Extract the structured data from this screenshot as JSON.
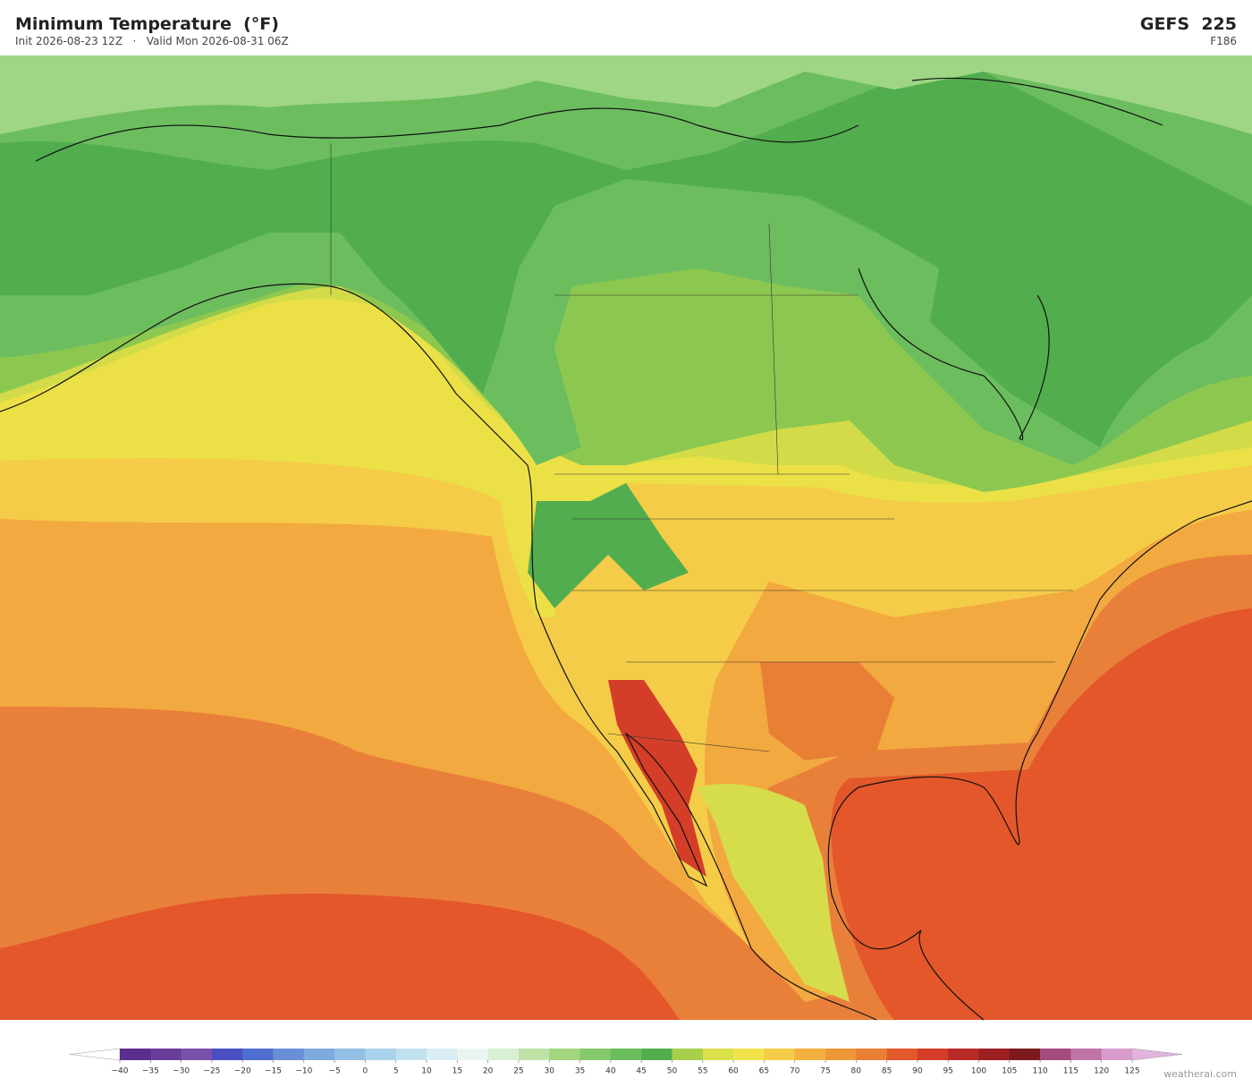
{
  "header": {
    "title": "Minimum Temperature  (°F)",
    "subtitle": "Init 2026-08-23 12Z   ·   Valid Mon 2026-08-31 06Z",
    "model": "GEFS  225",
    "forecast_hour": "F186"
  },
  "colorbar": {
    "ticks": [
      {
        "value": -40,
        "label": "−40"
      },
      {
        "value": -35,
        "label": "−35"
      },
      {
        "value": -30,
        "label": "−30"
      },
      {
        "value": -25,
        "label": "−25"
      },
      {
        "value": -20,
        "label": "−20"
      },
      {
        "value": -15,
        "label": "−15"
      },
      {
        "value": -10,
        "label": "−10"
      },
      {
        "value": -5,
        "label": "−5"
      },
      0,
      5,
      10,
      15,
      20,
      25,
      30,
      35,
      40,
      45,
      50,
      55,
      60,
      65,
      70,
      75,
      80,
      85,
      90,
      95,
      100,
      105,
      110,
      115,
      120,
      125
    ],
    "colors": [
      "#5b2d8e",
      "#6a3d9a",
      "#7b52ab",
      "#4b4fc4",
      "#4f6fd0",
      "#6a8fd6",
      "#7faade",
      "#93bfe4",
      "#a9d3ec",
      "#c2e1f0",
      "#d9eef4",
      "#e9f5ee",
      "#d9efd4",
      "#bfe3a6",
      "#a3d67f",
      "#86c96c",
      "#6cbd5e",
      "#52ad4e",
      "#a8cf4c",
      "#d9e04a",
      "#f0e44a",
      "#f5cc48",
      "#f2b040",
      "#ee9738",
      "#e87f35",
      "#e25a2c",
      "#d43e28",
      "#b82a26",
      "#9c1f22",
      "#7d1a1e",
      "#a44b80",
      "#c074a8",
      "#d89ccc"
    ],
    "under_color": "#ffffff",
    "over_color": "#e2b4dc"
  },
  "footer": {
    "credit": "weatherai.com"
  }
}
